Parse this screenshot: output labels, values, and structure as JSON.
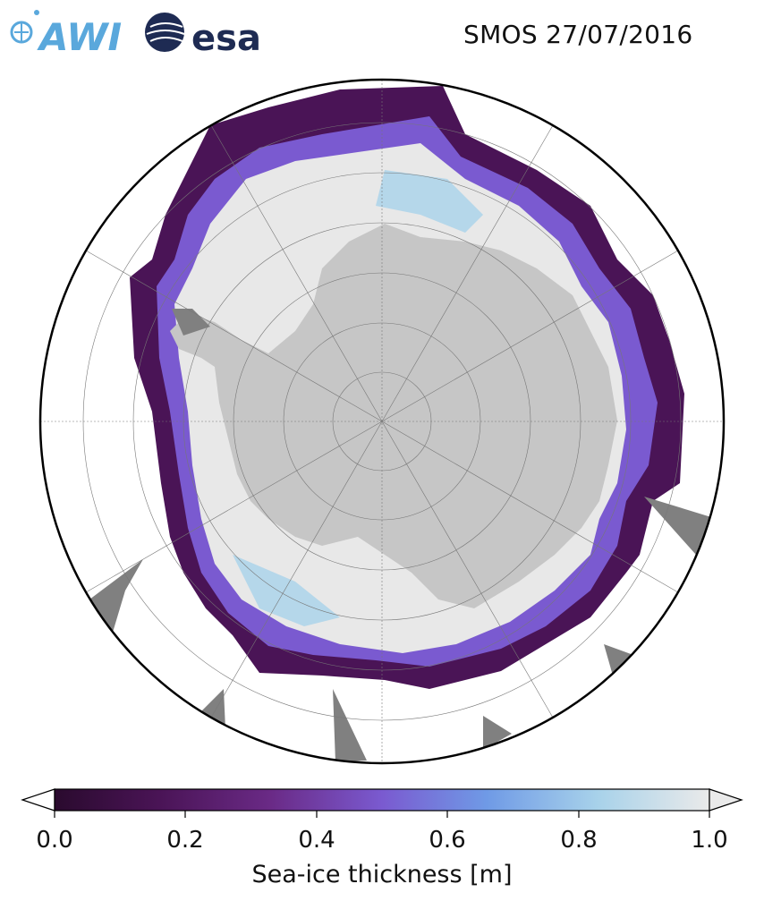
{
  "header": {
    "title": "SMOS 27/07/2016",
    "logos": [
      "AWI",
      "esa"
    ]
  },
  "colorbar": {
    "label": "Sea-ice thickness [m]",
    "ticks": [
      "0.0",
      "0.2",
      "0.4",
      "0.6",
      "0.8",
      "1.0"
    ],
    "min": 0.0,
    "max": 1.0,
    "extend": "both",
    "colors": [
      "#2a0a2e",
      "#4a1456",
      "#6a2a86",
      "#7a5ad0",
      "#6f9ae6",
      "#a8d2ea",
      "#eaeaea"
    ]
  },
  "map": {
    "projection": "south-polar-stereographic",
    "land_color": "#c6c6c6",
    "ice_shelf_color": "#808080",
    "ocean_color": "#ffffff",
    "no_data_color": "#808080",
    "thick_ice_color": "#e8e8e8"
  }
}
